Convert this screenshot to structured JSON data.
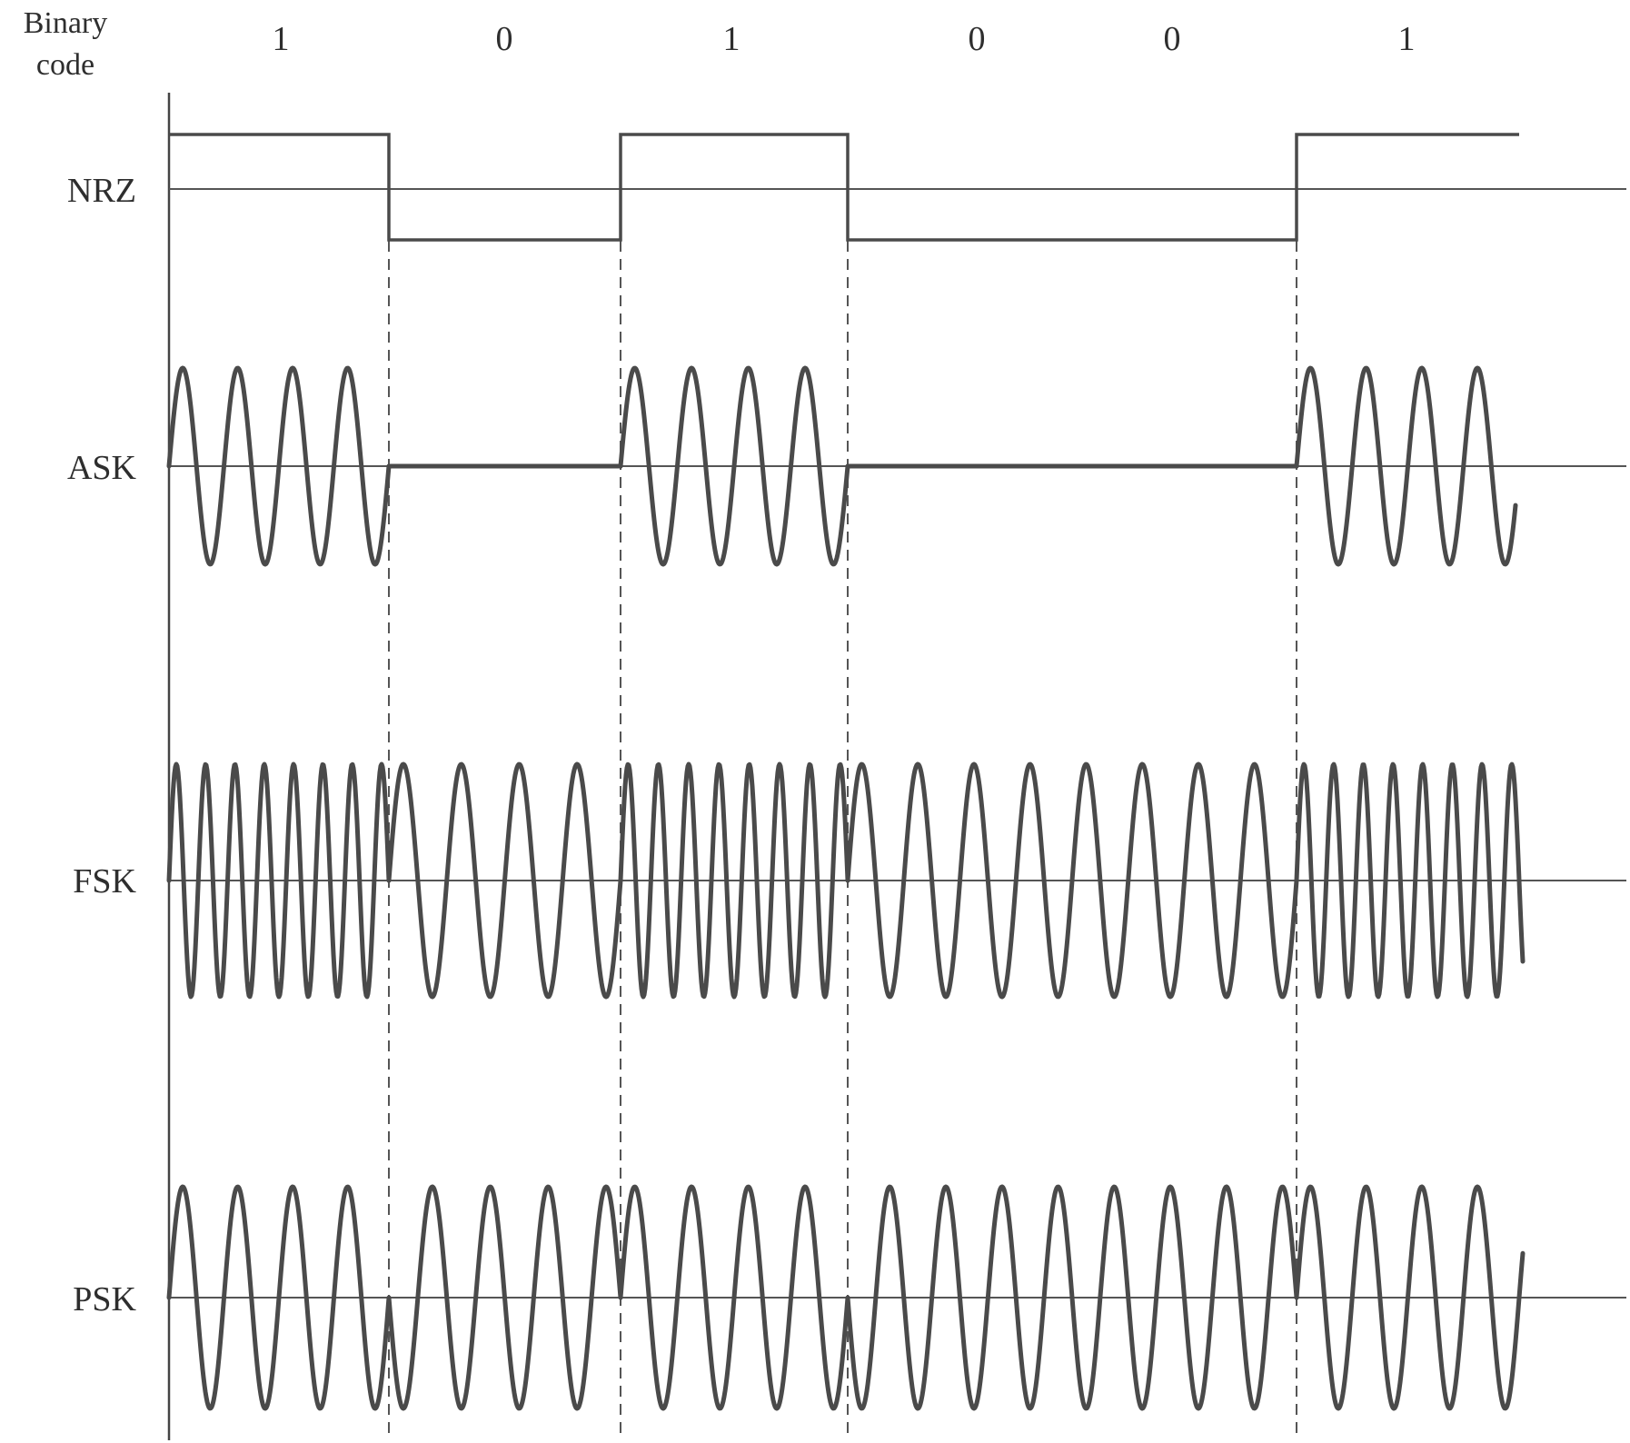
{
  "header": {
    "title_line1": "Binary",
    "title_line2": "code"
  },
  "bits": [
    "1",
    "0",
    "1",
    "0",
    "0",
    "1"
  ],
  "signals": {
    "nrz": "NRZ",
    "ask": "ASK",
    "fsk": "FSK",
    "psk": "PSK"
  },
  "colors": {
    "stroke": "#4a4a4a",
    "text": "#2e2e2e",
    "background": "#ffffff"
  }
}
